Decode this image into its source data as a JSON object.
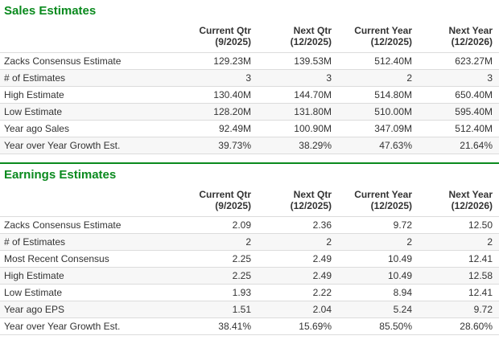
{
  "theme": {
    "accent_green": "#0a8a1e",
    "row_border": "#dcdcdc",
    "text": "#333333"
  },
  "sections": [
    {
      "title": "Sales Estimates",
      "columns": [
        {
          "label": "Current Qtr",
          "sub": "(9/2025)"
        },
        {
          "label": "Next Qtr",
          "sub": "(12/2025)"
        },
        {
          "label": "Current Year",
          "sub": "(12/2025)"
        },
        {
          "label": "Next Year",
          "sub": "(12/2026)"
        }
      ],
      "rows": [
        {
          "label": "Zacks Consensus Estimate",
          "values": [
            "129.23M",
            "139.53M",
            "512.40M",
            "623.27M"
          ]
        },
        {
          "label": "# of Estimates",
          "values": [
            "3",
            "3",
            "2",
            "3"
          ]
        },
        {
          "label": "High Estimate",
          "values": [
            "130.40M",
            "144.70M",
            "514.80M",
            "650.40M"
          ]
        },
        {
          "label": "Low Estimate",
          "values": [
            "128.20M",
            "131.80M",
            "510.00M",
            "595.40M"
          ]
        },
        {
          "label": "Year ago Sales",
          "values": [
            "92.49M",
            "100.90M",
            "347.09M",
            "512.40M"
          ]
        },
        {
          "label": "Year over Year Growth Est.",
          "values": [
            "39.73%",
            "38.29%",
            "47.63%",
            "21.64%"
          ]
        }
      ]
    },
    {
      "title": "Earnings Estimates",
      "columns": [
        {
          "label": "Current Qtr",
          "sub": "(9/2025)"
        },
        {
          "label": "Next Qtr",
          "sub": "(12/2025)"
        },
        {
          "label": "Current Year",
          "sub": "(12/2025)"
        },
        {
          "label": "Next Year",
          "sub": "(12/2026)"
        }
      ],
      "rows": [
        {
          "label": "Zacks Consensus Estimate",
          "values": [
            "2.09",
            "2.36",
            "9.72",
            "12.50"
          ]
        },
        {
          "label": "# of Estimates",
          "values": [
            "2",
            "2",
            "2",
            "2"
          ]
        },
        {
          "label": "Most Recent Consensus",
          "values": [
            "2.25",
            "2.49",
            "10.49",
            "12.41"
          ]
        },
        {
          "label": "High Estimate",
          "values": [
            "2.25",
            "2.49",
            "10.49",
            "12.58"
          ]
        },
        {
          "label": "Low Estimate",
          "values": [
            "1.93",
            "2.22",
            "8.94",
            "12.41"
          ]
        },
        {
          "label": "Year ago EPS",
          "values": [
            "1.51",
            "2.04",
            "5.24",
            "9.72"
          ]
        },
        {
          "label": "Year over Year Growth Est.",
          "values": [
            "38.41%",
            "15.69%",
            "85.50%",
            "28.60%"
          ]
        }
      ]
    }
  ]
}
